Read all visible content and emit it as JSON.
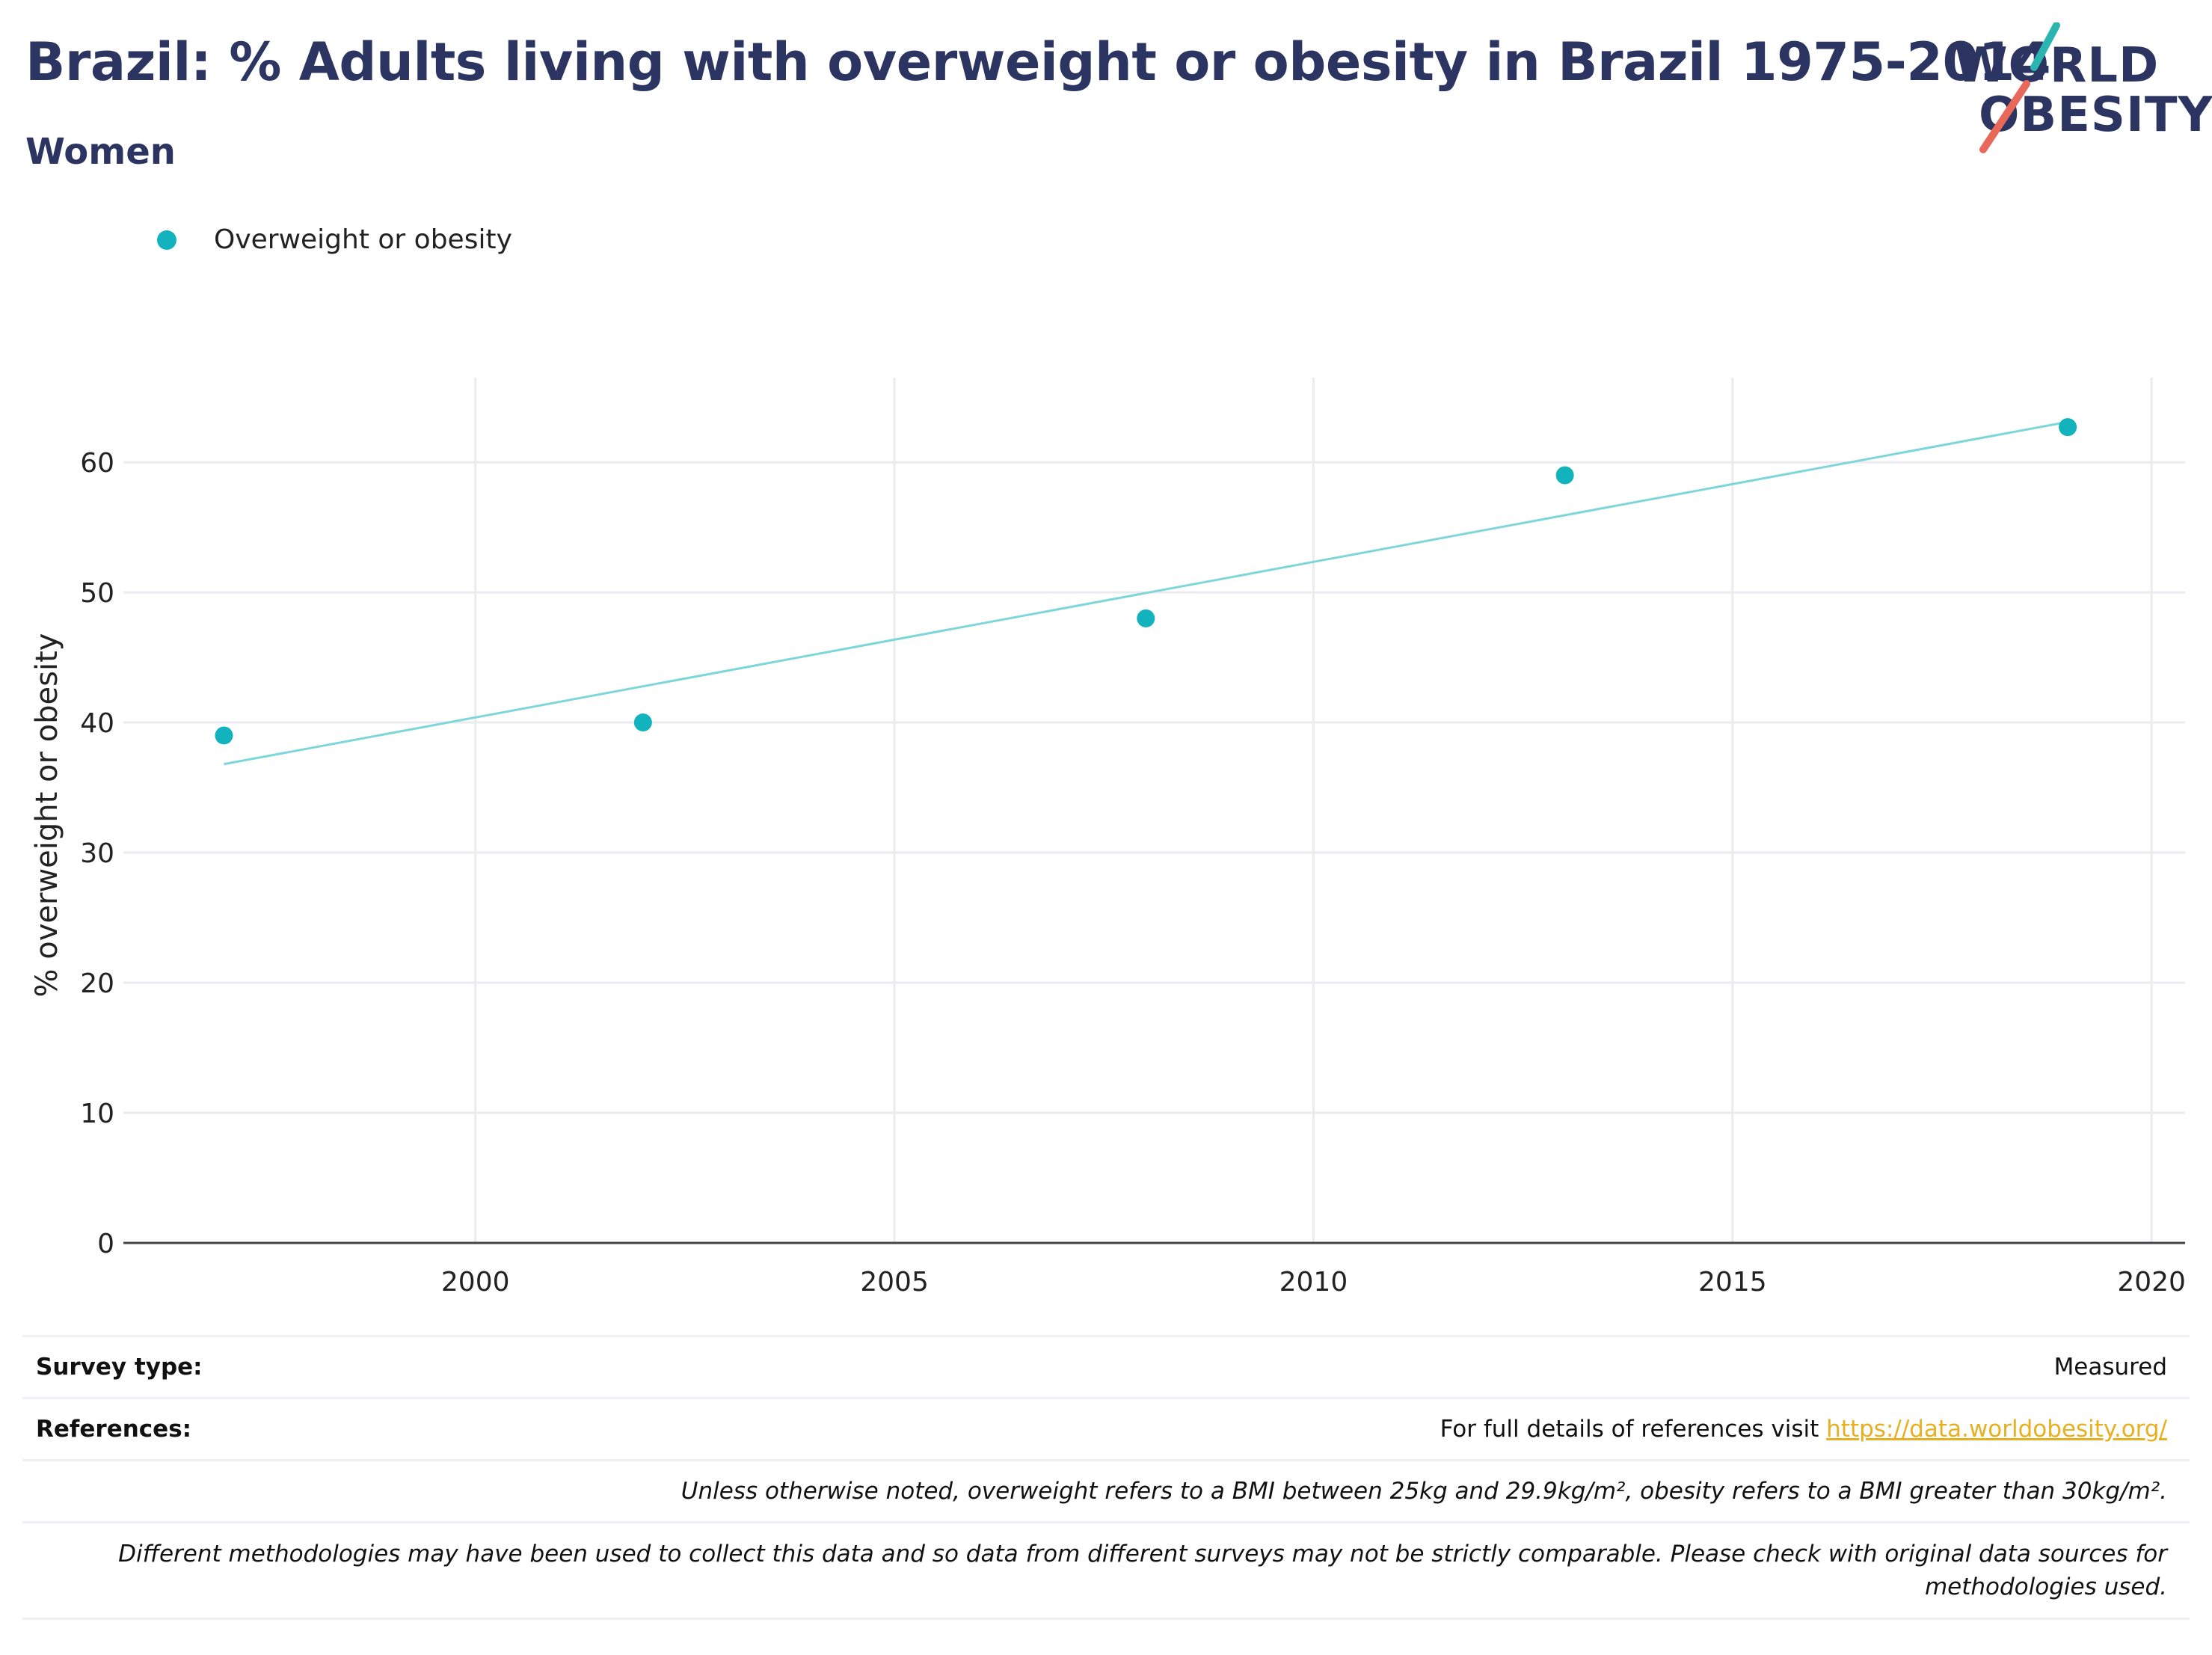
{
  "header": {
    "title": "Brazil: % Adults living with overweight or obesity in Brazil 1975-2014",
    "subtitle": "Women"
  },
  "logo": {
    "line1": "WORLD",
    "line2": "OBESITY",
    "accent_teal": "#2bb5b0",
    "accent_red": "#e8685a"
  },
  "legend": {
    "label": "Overweight or obesity",
    "color": "#12b3bd"
  },
  "chart_data": {
    "type": "scatter",
    "ylabel": "% overweight or obesity",
    "xlabel": "",
    "xlim": [
      1995.8,
      2020.4
    ],
    "ylim": [
      0,
      66.5
    ],
    "xticks": [
      2000,
      2005,
      2010,
      2015,
      2020
    ],
    "yticks": [
      0,
      10,
      20,
      30,
      40,
      50,
      60
    ],
    "grid": true,
    "legend_position": "top-left",
    "series": [
      {
        "name": "Overweight or obesity",
        "color": "#12b3bd",
        "x": [
          1997,
          2002,
          2008,
          2013,
          2019
        ],
        "y": [
          39,
          40,
          48,
          59,
          62.7
        ]
      }
    ],
    "trendline": {
      "color": "#7dd6d9",
      "x": [
        1997,
        2019
      ],
      "y": [
        36.8,
        63.1
      ]
    }
  },
  "footer": {
    "survey_label": "Survey type:",
    "survey_value": "Measured",
    "references_label": "References:",
    "references_text": "For full details of references visit ",
    "references_link": "https://data.worldobesity.org/",
    "note1": "Unless otherwise noted, overweight refers to a BMI between 25kg and 29.9kg/m², obesity refers to a BMI greater than 30kg/m².",
    "note2": "Different methodologies may have been used to collect this data and so data from different surveys may not be strictly comparable. Please check with original data sources for methodologies used."
  }
}
